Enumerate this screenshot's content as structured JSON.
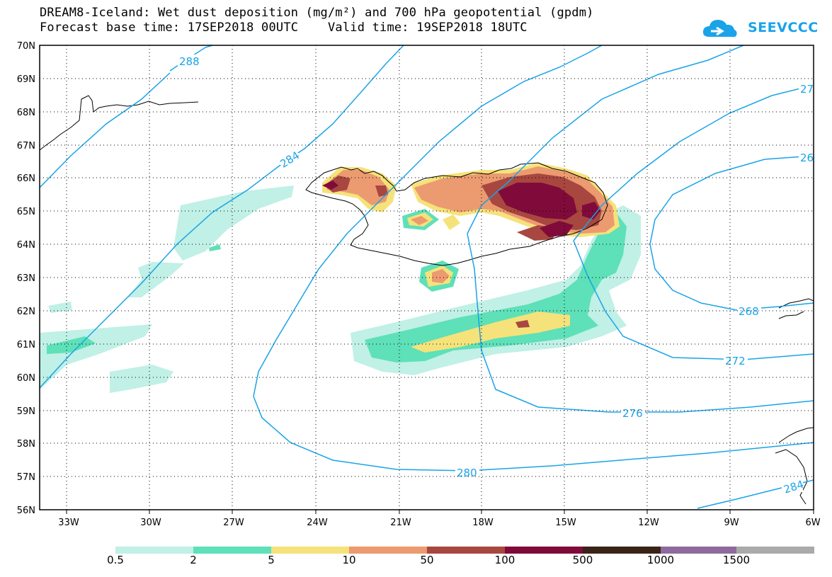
{
  "title": {
    "line1": "DREAM8-Iceland: Wet dust deposition (mg/m²) and 700 hPa geopotential (gpdm)",
    "line2": "Forecast base time: 17SEP2018 00UTC    Valid time: 19SEP2018 18UTC"
  },
  "logo": {
    "text": "SEEVCCC",
    "color": "#1aa3e8"
  },
  "axes": {
    "lat_labels": [
      "70N",
      "69N",
      "68N",
      "67N",
      "66N",
      "65N",
      "64N",
      "63N",
      "62N",
      "61N",
      "60N",
      "59N",
      "58N",
      "57N",
      "56N"
    ],
    "lon_labels": [
      "33W",
      "30W",
      "27W",
      "24W",
      "21W",
      "18W",
      "15W",
      "12W",
      "9W",
      "6W"
    ]
  },
  "contours": {
    "labels": [
      "288",
      "284",
      "280",
      "276",
      "272",
      "268",
      "284",
      "27",
      "26"
    ],
    "color": "#1aa3e8"
  },
  "legend": {
    "labels": [
      "0.5",
      "2",
      "5",
      "10",
      "50",
      "100",
      "500",
      "1000",
      "1500"
    ],
    "colors": [
      "#c0f0e6",
      "#5ee0b8",
      "#f5e27a",
      "#ec9a70",
      "#a8473f",
      "#800b3a",
      "#3a2318",
      "#8f6a9e",
      "#aaaaaa"
    ]
  }
}
